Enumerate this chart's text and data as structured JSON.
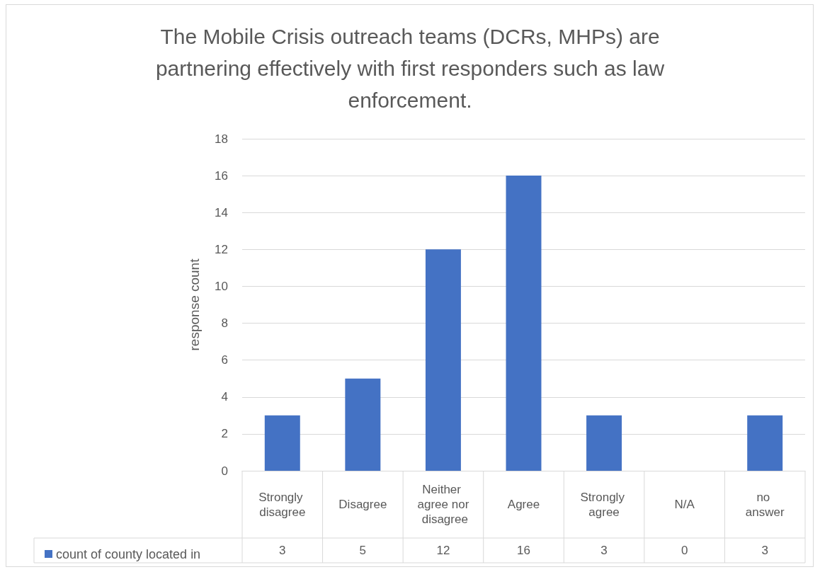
{
  "chart_data": {
    "type": "bar",
    "title": "The Mobile Crisis outreach teams (DCRs, MHPs) are partnering effectively with first responders such as law enforcement.",
    "ylabel": "response count",
    "categories": [
      "Strongly disagree",
      "Disagree",
      "Neither agree nor disagree",
      "Agree",
      "Strongly agree",
      "N/A",
      "no answer"
    ],
    "series": [
      {
        "name": "count of county located in",
        "color": "#4472c4",
        "values": [
          3,
          5,
          12,
          16,
          3,
          0,
          3
        ]
      }
    ],
    "ylim": [
      0,
      18
    ],
    "yticks": [
      0,
      2,
      4,
      6,
      8,
      10,
      12,
      14,
      16,
      18
    ],
    "grid": "y",
    "legend": "bottom",
    "data_labels": true
  }
}
